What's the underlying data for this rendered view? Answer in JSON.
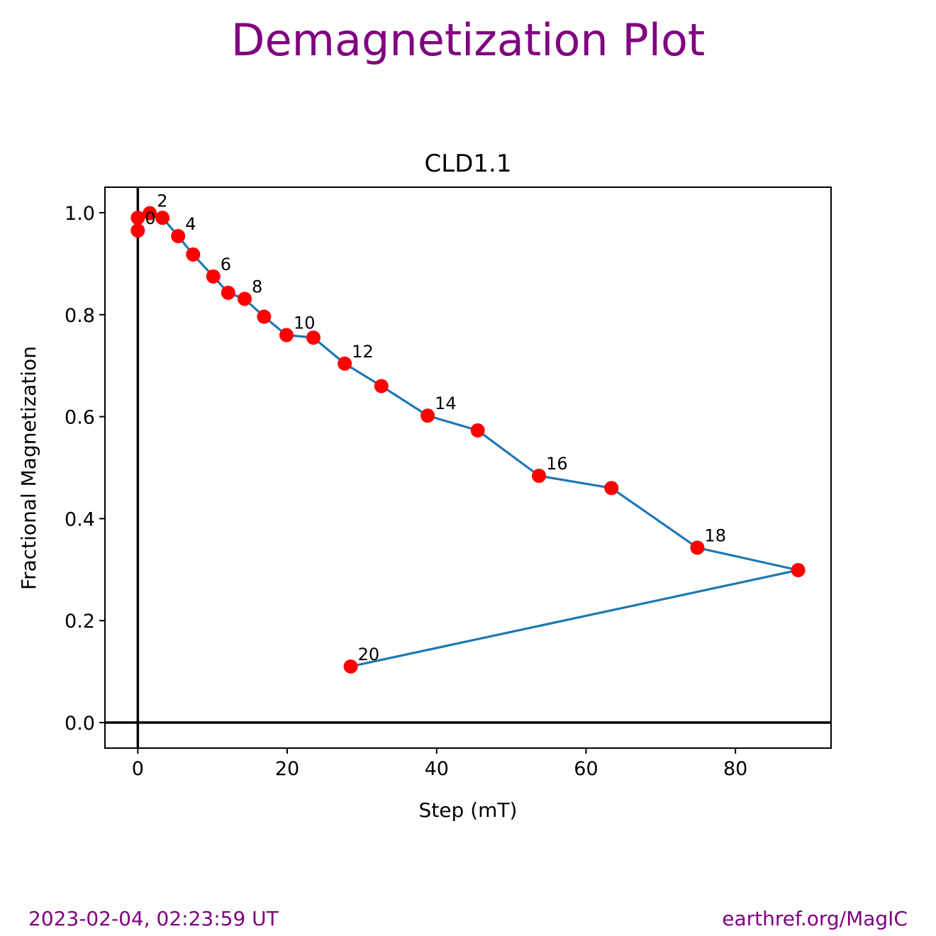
{
  "page": {
    "title": "Demagnetization Plot",
    "footer_left": "2023-02-04, 02:23:59 UT",
    "footer_right": "earthref.org/MagIC"
  },
  "colors": {
    "title": "#800080",
    "line": "#1f77b4",
    "marker": "#ff0000",
    "axes": "#000000"
  },
  "chart_data": {
    "type": "line",
    "title": "CLD1.1",
    "xlabel": "Step (mT)",
    "ylabel": "Fractional Magnetization",
    "xlim": [
      -4.4,
      92.8
    ],
    "ylim": [
      -0.05,
      1.05
    ],
    "xticks": [
      0,
      20,
      40,
      60,
      80
    ],
    "yticks": [
      0.0,
      0.2,
      0.4,
      0.6,
      0.8,
      1.0
    ],
    "ytick_labels": [
      "0.0",
      "0.2",
      "0.4",
      "0.6",
      "0.8",
      "1.0"
    ],
    "grid": false,
    "reference_lines": {
      "x": 0,
      "y": 0
    },
    "points": [
      {
        "x": 0.0,
        "y": 0.965,
        "label": "0"
      },
      {
        "x": 0.0,
        "y": 0.99,
        "label": ""
      },
      {
        "x": 1.6,
        "y": 0.999,
        "label": "2"
      },
      {
        "x": 3.3,
        "y": 0.99,
        "label": ""
      },
      {
        "x": 5.4,
        "y": 0.954,
        "label": "4"
      },
      {
        "x": 7.4,
        "y": 0.918,
        "label": ""
      },
      {
        "x": 10.1,
        "y": 0.875,
        "label": "6"
      },
      {
        "x": 12.1,
        "y": 0.843,
        "label": ""
      },
      {
        "x": 14.3,
        "y": 0.831,
        "label": "8"
      },
      {
        "x": 16.9,
        "y": 0.796,
        "label": ""
      },
      {
        "x": 19.9,
        "y": 0.76,
        "label": "10"
      },
      {
        "x": 23.5,
        "y": 0.755,
        "label": ""
      },
      {
        "x": 27.7,
        "y": 0.704,
        "label": "12"
      },
      {
        "x": 32.6,
        "y": 0.66,
        "label": ""
      },
      {
        "x": 38.8,
        "y": 0.602,
        "label": "14"
      },
      {
        "x": 45.5,
        "y": 0.573,
        "label": ""
      },
      {
        "x": 53.7,
        "y": 0.484,
        "label": "16"
      },
      {
        "x": 63.4,
        "y": 0.46,
        "label": ""
      },
      {
        "x": 74.9,
        "y": 0.343,
        "label": "18"
      },
      {
        "x": 88.4,
        "y": 0.299,
        "label": ""
      },
      {
        "x": 28.5,
        "y": 0.11,
        "label": "20"
      }
    ]
  }
}
